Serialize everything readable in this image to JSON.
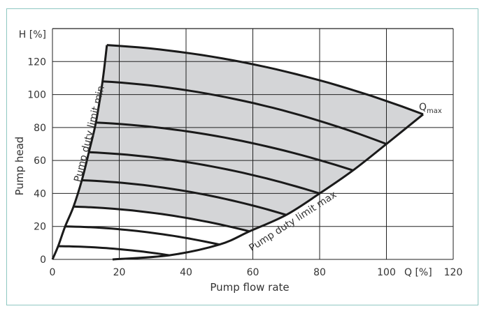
{
  "chart_data": {
    "type": "line",
    "title": "",
    "xlabel": "Pump flow rate",
    "ylabel": "Pump head",
    "x_unit_label": "Q [%]",
    "y_unit_label": "H [%]",
    "xlim": [
      0,
      120
    ],
    "ylim": [
      0,
      140
    ],
    "x_ticks": [
      0,
      20,
      40,
      60,
      80,
      100,
      120
    ],
    "x_tick_labels": [
      "0",
      "20",
      "40",
      "60",
      "80",
      "100",
      "120"
    ],
    "y_ticks": [
      0,
      20,
      40,
      60,
      80,
      100,
      120
    ],
    "grid": true,
    "min_limit": {
      "label": "Pump duty limit min",
      "points": [
        [
          0,
          0
        ],
        [
          1.7,
          8
        ],
        [
          3.8,
          20
        ],
        [
          6.3,
          32
        ],
        [
          8.8,
          48
        ],
        [
          10.9,
          65
        ],
        [
          13,
          83
        ],
        [
          15,
          108
        ],
        [
          16.3,
          130
        ]
      ]
    },
    "max_limit": {
      "label": "Pump duty limit max",
      "points": [
        [
          18,
          0
        ],
        [
          35,
          2.5
        ],
        [
          50,
          9
        ],
        [
          59,
          17
        ],
        [
          70,
          27
        ],
        [
          80,
          40
        ],
        [
          90,
          54
        ],
        [
          100,
          70
        ],
        [
          111,
          88
        ]
      ]
    },
    "qmax": {
      "label": "Q",
      "subscript": "max",
      "point": [
        111,
        88
      ]
    },
    "pump_curves": [
      {
        "start": [
          16.3,
          130
        ],
        "end": [
          111,
          88
        ]
      },
      {
        "start": [
          15,
          108
        ],
        "end": [
          100,
          70
        ]
      },
      {
        "start": [
          13,
          83
        ],
        "end": [
          90,
          54
        ]
      },
      {
        "start": [
          10.9,
          65
        ],
        "end": [
          80,
          40
        ]
      },
      {
        "start": [
          8.8,
          48
        ],
        "end": [
          70,
          27
        ]
      },
      {
        "start": [
          6.3,
          32
        ],
        "end": [
          59,
          17
        ]
      },
      {
        "start": [
          3.8,
          20
        ],
        "end": [
          50,
          9
        ]
      },
      {
        "start": [
          1.7,
          8
        ],
        "end": [
          35,
          2.5
        ]
      }
    ],
    "colors": {
      "fill": "#d4d5d7",
      "line": "#1a1a1a",
      "grid": "#222222",
      "frame": "#8fc7c2"
    }
  }
}
